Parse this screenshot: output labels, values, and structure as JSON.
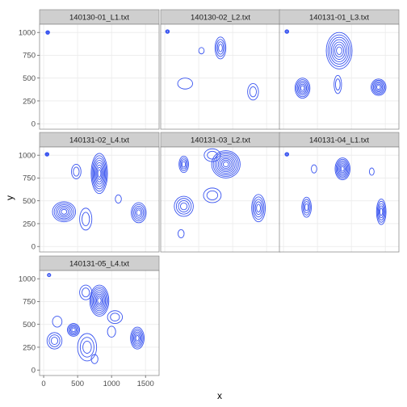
{
  "chart_data": {
    "type": "contour",
    "xlabel": "x",
    "ylabel": "y",
    "xlim": [
      -60,
      1700
    ],
    "ylim": [
      -60,
      1090
    ],
    "x_ticks": [
      0,
      500,
      1000,
      1500
    ],
    "x_tick_labels": [
      "0",
      "500",
      "1000",
      "1500"
    ],
    "y_ticks": [
      0,
      250,
      500,
      750,
      1000
    ],
    "y_tick_labels": [
      "0",
      "250",
      "500",
      "750",
      "1000"
    ],
    "grid": true,
    "line_color": "#3a55f0",
    "strip_fill": "#cfcfcf",
    "panel_border": "#7f7f7f",
    "gridline_color": "#ebebeb",
    "panels": [
      {
        "title": "140130-01_L1.txt",
        "peaks": [
          {
            "x": 60,
            "y": 1000,
            "sx": 28,
            "sy": 20,
            "levels": 4
          }
        ]
      },
      {
        "title": "140130-02_L2.txt",
        "peaks": [
          {
            "x": 40,
            "y": 1010,
            "sx": 28,
            "sy": 20,
            "levels": 3
          },
          {
            "x": 820,
            "y": 830,
            "sx": 80,
            "sy": 120,
            "levels": 4
          },
          {
            "x": 300,
            "y": 440,
            "sx": 110,
            "sy": 60,
            "levels": 1
          },
          {
            "x": 1300,
            "y": 350,
            "sx": 80,
            "sy": 90,
            "levels": 2
          },
          {
            "x": 540,
            "y": 800,
            "sx": 40,
            "sy": 35,
            "levels": 1
          }
        ]
      },
      {
        "title": "140131-01_L3.txt",
        "peaks": [
          {
            "x": 50,
            "y": 1010,
            "sx": 28,
            "sy": 20,
            "levels": 3
          },
          {
            "x": 820,
            "y": 800,
            "sx": 190,
            "sy": 200,
            "levels": 7
          },
          {
            "x": 280,
            "y": 390,
            "sx": 110,
            "sy": 110,
            "levels": 6
          },
          {
            "x": 1400,
            "y": 400,
            "sx": 110,
            "sy": 90,
            "levels": 6
          },
          {
            "x": 800,
            "y": 430,
            "sx": 55,
            "sy": 100,
            "levels": 2
          }
        ]
      },
      {
        "title": "140131-02_L4.txt",
        "peaks": [
          {
            "x": 50,
            "y": 1010,
            "sx": 28,
            "sy": 20,
            "levels": 4
          },
          {
            "x": 820,
            "y": 800,
            "sx": 120,
            "sy": 220,
            "levels": 8
          },
          {
            "x": 300,
            "y": 380,
            "sx": 170,
            "sy": 110,
            "levels": 6
          },
          {
            "x": 1400,
            "y": 370,
            "sx": 110,
            "sy": 110,
            "levels": 5
          },
          {
            "x": 480,
            "y": 820,
            "sx": 70,
            "sy": 80,
            "levels": 2
          },
          {
            "x": 1100,
            "y": 520,
            "sx": 45,
            "sy": 45,
            "levels": 1
          },
          {
            "x": 620,
            "y": 300,
            "sx": 90,
            "sy": 120,
            "levels": 2
          }
        ]
      },
      {
        "title": "140131-03_L2.txt",
        "peaks": [
          {
            "x": 900,
            "y": 900,
            "sx": 210,
            "sy": 150,
            "levels": 8
          },
          {
            "x": 280,
            "y": 900,
            "sx": 70,
            "sy": 90,
            "levels": 4
          },
          {
            "x": 280,
            "y": 440,
            "sx": 140,
            "sy": 110,
            "levels": 4
          },
          {
            "x": 1380,
            "y": 420,
            "sx": 100,
            "sy": 150,
            "levels": 5
          },
          {
            "x": 700,
            "y": 560,
            "sx": 130,
            "sy": 80,
            "levels": 2
          },
          {
            "x": 240,
            "y": 140,
            "sx": 45,
            "sy": 45,
            "levels": 1
          },
          {
            "x": 700,
            "y": 1000,
            "sx": 120,
            "sy": 70,
            "levels": 2
          }
        ]
      },
      {
        "title": "140131-04_L1.txt",
        "peaks": [
          {
            "x": 50,
            "y": 1010,
            "sx": 28,
            "sy": 20,
            "levels": 3
          },
          {
            "x": 870,
            "y": 850,
            "sx": 110,
            "sy": 120,
            "levels": 7
          },
          {
            "x": 340,
            "y": 430,
            "sx": 70,
            "sy": 110,
            "levels": 4
          },
          {
            "x": 1440,
            "y": 380,
            "sx": 70,
            "sy": 140,
            "levels": 5
          },
          {
            "x": 450,
            "y": 850,
            "sx": 40,
            "sy": 45,
            "levels": 1
          },
          {
            "x": 1300,
            "y": 820,
            "sx": 35,
            "sy": 40,
            "levels": 1
          }
        ]
      },
      {
        "title": "140131-05_L4.txt",
        "peaks": [
          {
            "x": 80,
            "y": 1040,
            "sx": 25,
            "sy": 18,
            "levels": 2
          },
          {
            "x": 820,
            "y": 760,
            "sx": 140,
            "sy": 170,
            "levels": 8
          },
          {
            "x": 440,
            "y": 440,
            "sx": 90,
            "sy": 70,
            "levels": 5
          },
          {
            "x": 1380,
            "y": 350,
            "sx": 100,
            "sy": 120,
            "levels": 6
          },
          {
            "x": 160,
            "y": 320,
            "sx": 110,
            "sy": 90,
            "levels": 3
          },
          {
            "x": 640,
            "y": 250,
            "sx": 140,
            "sy": 150,
            "levels": 3
          },
          {
            "x": 620,
            "y": 850,
            "sx": 90,
            "sy": 80,
            "levels": 2
          },
          {
            "x": 1050,
            "y": 580,
            "sx": 110,
            "sy": 70,
            "levels": 2
          },
          {
            "x": 200,
            "y": 530,
            "sx": 70,
            "sy": 60,
            "levels": 1
          },
          {
            "x": 1000,
            "y": 420,
            "sx": 60,
            "sy": 60,
            "levels": 1
          },
          {
            "x": 750,
            "y": 120,
            "sx": 50,
            "sy": 50,
            "levels": 1
          }
        ]
      }
    ]
  }
}
